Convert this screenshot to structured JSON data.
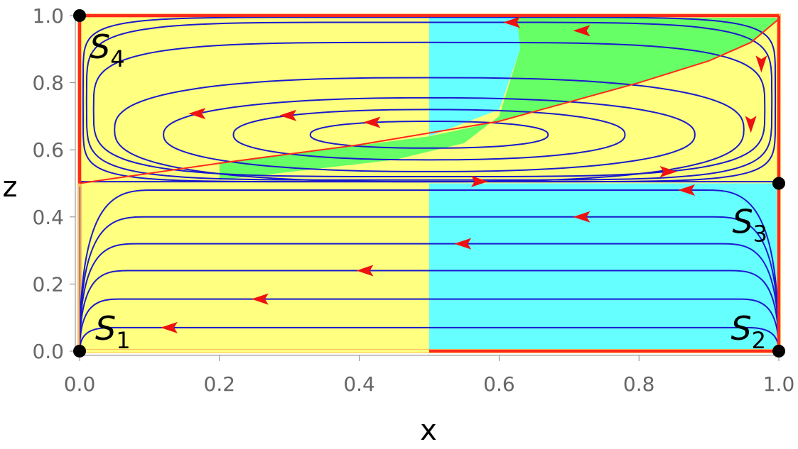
{
  "chart_data": {
    "type": "stream-plot",
    "xlabel": "x",
    "ylabel": "z",
    "xlim": [
      0,
      1
    ],
    "ylim": [
      0,
      1
    ],
    "x_ticks": [
      "0.0",
      "0.2",
      "0.4",
      "0.6",
      "0.8",
      "1.0"
    ],
    "y_ticks": [
      "0.0",
      "0.2",
      "0.4",
      "0.6",
      "0.8",
      "1.0"
    ],
    "colors": {
      "region_yellow": "#ffff80",
      "region_cyan": "#66ffff",
      "region_green": "#66ff66",
      "boundary": "#ff2a1a",
      "streamline": "#1a1acc",
      "arrow": "#ee1111",
      "point": "#000000"
    },
    "equilibria": [
      {
        "name": "S",
        "sub": "1",
        "x": 0,
        "z": 0
      },
      {
        "name": "S",
        "sub": "2",
        "x": 1,
        "z": 0
      },
      {
        "name": "S",
        "sub": "3",
        "x": 1,
        "z": 0.5
      },
      {
        "name": "S",
        "sub": "4",
        "x": 0,
        "z": 1
      }
    ],
    "red_curve": [
      [
        0,
        0.5
      ],
      [
        0.2,
        0.56
      ],
      [
        0.4,
        0.615
      ],
      [
        0.6,
        0.685
      ],
      [
        0.8,
        0.8
      ],
      [
        0.9,
        0.865
      ],
      [
        0.96,
        0.92
      ],
      [
        1,
        0.99
      ]
    ],
    "lower_streamlines": [
      {
        "z": 0.07,
        "arrow_x": 0.13
      },
      {
        "z": 0.155,
        "arrow_x": 0.26
      },
      {
        "z": 0.24,
        "arrow_x": 0.41
      },
      {
        "z": 0.32,
        "arrow_x": 0.55
      },
      {
        "z": 0.4,
        "arrow_x": 0.72
      },
      {
        "z": 0.48,
        "arrow_x": 0.87
      }
    ],
    "upper_orbits": [
      {
        "cx": 0.5,
        "cz": 0.645,
        "rx": 0.17,
        "rz": 0.04,
        "arrow_x": 0.42
      },
      {
        "cx": 0.5,
        "cz": 0.645,
        "rx": 0.28,
        "rz": 0.075,
        "arrow_x": 0.3
      },
      {
        "cx": 0.5,
        "cz": 0.645,
        "rx": 0.38,
        "rz": 0.11,
        "arrow_x": 0.17
      },
      {
        "cx": 0.5,
        "cz": 0.66,
        "rx": 0.45,
        "rz": 0.155,
        "arrow_x": 0.57
      },
      {
        "cx": 0.5,
        "cz": 0.72,
        "rx": 0.48,
        "rz": 0.2,
        "arrow_x": 0.84
      },
      {
        "cx": 0.5,
        "cz": 0.745,
        "rx": 0.49,
        "rz": 0.235,
        "arrow_x": 0.62
      }
    ]
  }
}
